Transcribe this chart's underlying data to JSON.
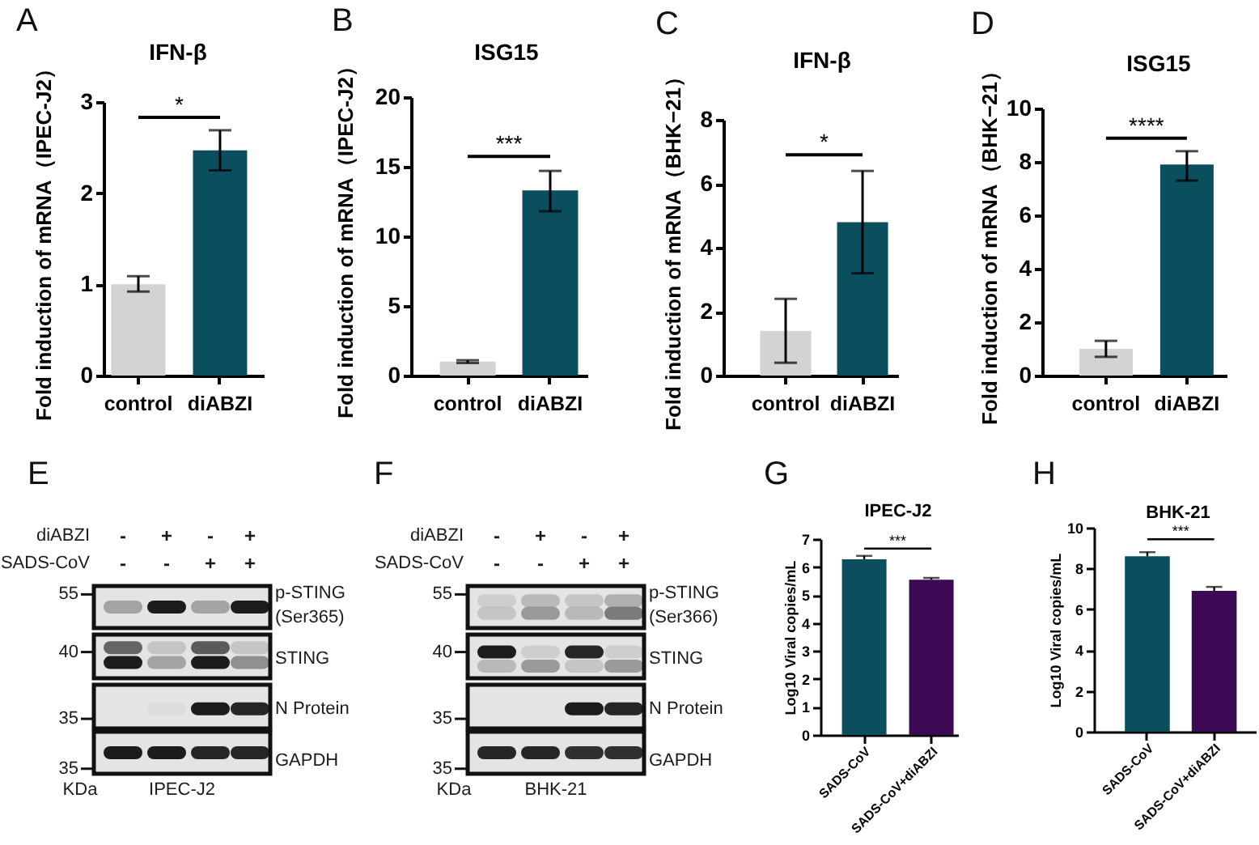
{
  "chart_data": [
    {
      "type": "bar",
      "title": "IFN-β",
      "ylabel": "Fold induction of mRNA（IPEC-J2）",
      "categories": [
        "control",
        "diABZI"
      ],
      "values": [
        1,
        2.47
      ],
      "colors": [
        "#d3d3d3",
        "#0b4f5e"
      ],
      "errors": [
        [
          0.92,
          1.09
        ],
        [
          2.25,
          2.69
        ]
      ],
      "ylim": [
        0,
        3
      ],
      "yticks": [
        0,
        1,
        2,
        3
      ],
      "annotations": [
        "A",
        "*"
      ]
    },
    {
      "type": "bar",
      "title": "ISG15",
      "ylabel": "Fold induction of mRNA（IPEC-J2）",
      "categories": [
        "control",
        "diABZI"
      ],
      "values": [
        1,
        13.3
      ],
      "colors": [
        "#d3d3d3",
        "#0b4f5e"
      ],
      "errors": [
        [
          0.9,
          1.1
        ],
        [
          11.8,
          14.7
        ]
      ],
      "ylim": [
        0,
        20
      ],
      "yticks": [
        0,
        5,
        10,
        15,
        20
      ],
      "annotations": [
        "B",
        "***"
      ]
    },
    {
      "type": "bar",
      "title": "IFN-β",
      "ylabel": "Fold induction of mRNA（BHK−21）",
      "categories": [
        "control",
        "diABZI"
      ],
      "values": [
        1.4,
        4.8
      ],
      "colors": [
        "#d3d3d3",
        "#0b4f5e"
      ],
      "errors": [
        [
          0.4,
          2.4
        ],
        [
          3.2,
          6.4
        ]
      ],
      "ylim": [
        0,
        8
      ],
      "yticks": [
        0,
        2,
        4,
        6,
        8
      ],
      "annotations": [
        "C",
        "*"
      ]
    },
    {
      "type": "bar",
      "title": "ISG15",
      "ylabel": "Fold induction of mRNA（BHK−21）",
      "categories": [
        "control",
        "diABZI"
      ],
      "values": [
        1,
        7.9
      ],
      "colors": [
        "#d3d3d3",
        "#0b4f5e"
      ],
      "errors": [
        [
          0.7,
          1.3
        ],
        [
          7.3,
          8.4
        ]
      ],
      "ylim": [
        0,
        10
      ],
      "yticks": [
        0,
        2,
        4,
        6,
        8,
        10
      ],
      "annotations": [
        "D",
        "****"
      ]
    },
    {
      "type": "other",
      "annotations": [
        "E",
        "diABZI",
        "-",
        "+",
        "-",
        "+",
        "SADS-CoV",
        "-",
        "-",
        "+",
        "+",
        "55",
        "40",
        "35",
        "35",
        "KDa",
        "p-STING (Ser365)",
        "STING",
        "N Protein",
        "GAPDH",
        "IPEC-J2"
      ]
    },
    {
      "type": "other",
      "annotations": [
        "F",
        "diABZI",
        "-",
        "+",
        "-",
        "+",
        "SADS-CoV",
        "-",
        "-",
        "+",
        "+",
        "55",
        "40",
        "35",
        "35",
        "KDa",
        "p-STING (Ser366)",
        "STING",
        "N Protein",
        "GAPDH",
        "BHK-21"
      ]
    },
    {
      "type": "bar",
      "title": "IPEC-J2",
      "ylabel": "Log10 Viral copies/mL",
      "categories": [
        "SADS-CoV",
        "SADS-CoV+diABZI"
      ],
      "values": [
        6.28,
        5.55
      ],
      "colors": [
        "#0b4f5e",
        "#3c0a55"
      ],
      "errors": [
        [
          6.28,
          6.4
        ],
        [
          5.55,
          5.61
        ]
      ],
      "ylim": [
        0,
        7
      ],
      "yticks": [
        0,
        1,
        2,
        3,
        4,
        5,
        6,
        7
      ],
      "annotations": [
        "G",
        "***"
      ]
    },
    {
      "type": "bar",
      "title": "BHK-21",
      "ylabel": "Log10 Viral copies/mL",
      "categories": [
        "SADS-CoV",
        "SADS-CoV+diABZI"
      ],
      "values": [
        8.6,
        6.9
      ],
      "colors": [
        "#0b4f5e",
        "#3c0a55"
      ],
      "errors": [
        [
          8.6,
          8.8
        ],
        [
          6.9,
          7.1
        ]
      ],
      "ylim": [
        0,
        10
      ],
      "yticks": [
        0,
        2,
        4,
        6,
        8,
        10
      ],
      "annotations": [
        "H",
        "***"
      ]
    }
  ]
}
